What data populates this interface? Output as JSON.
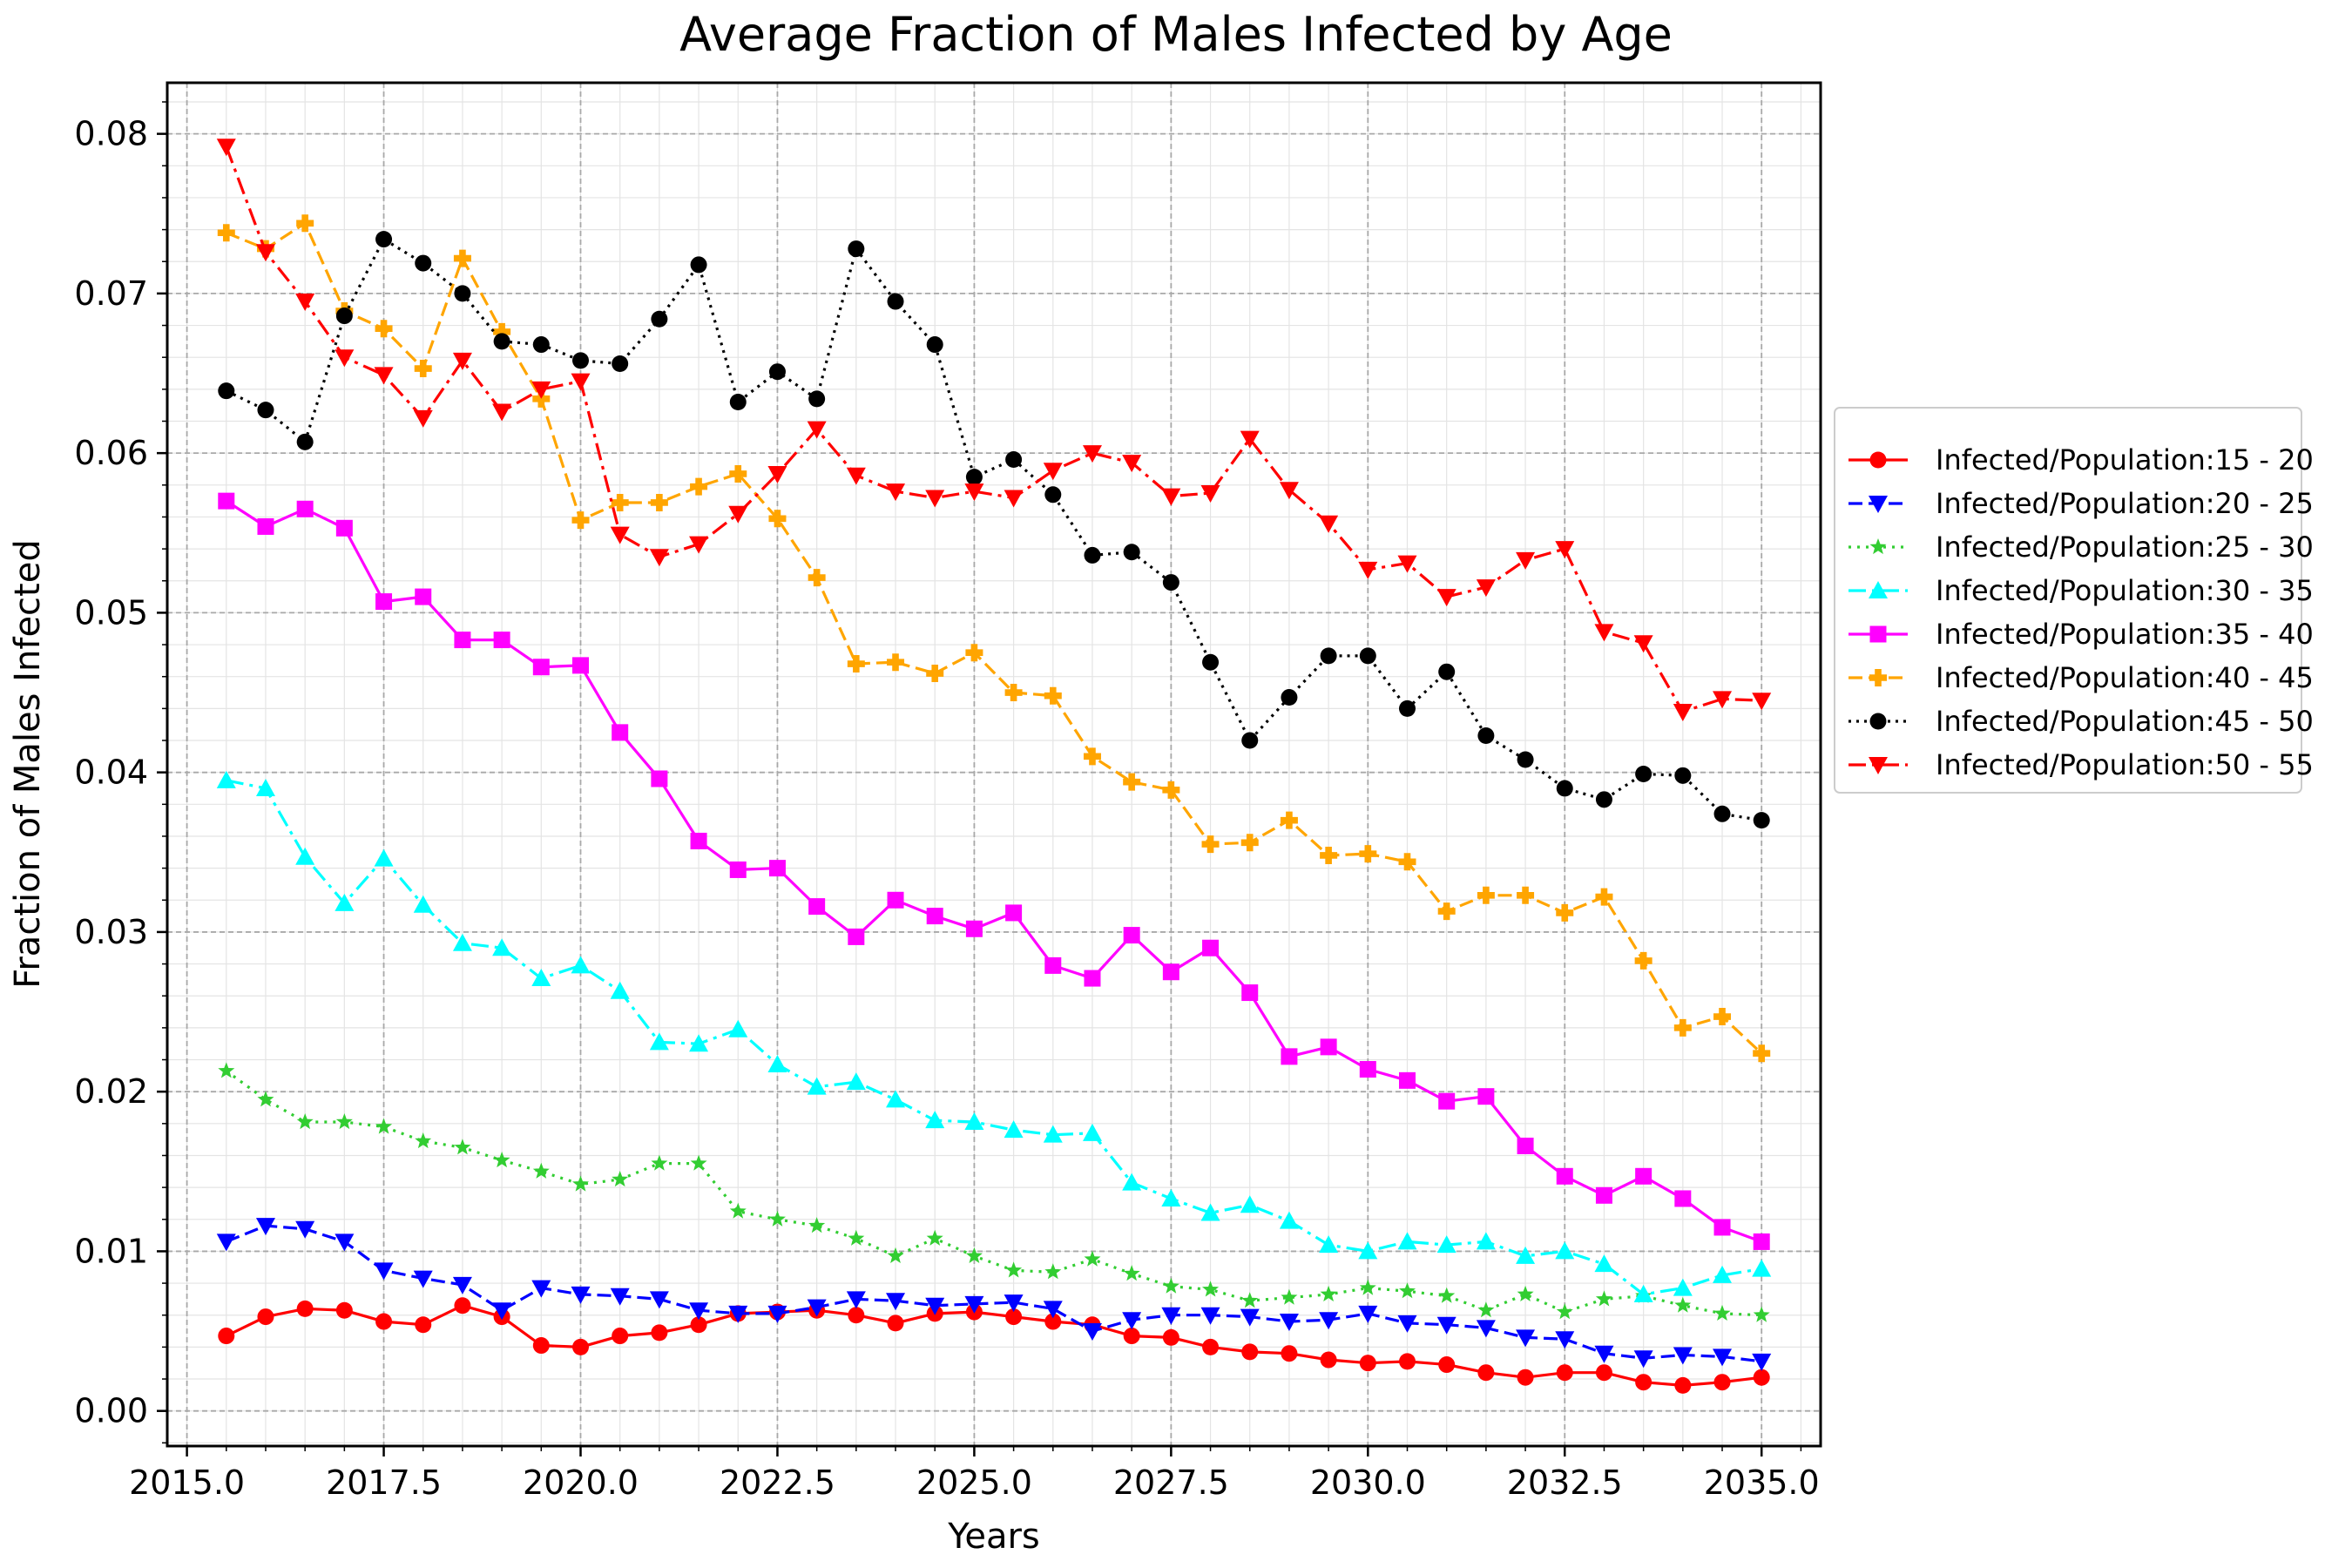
{
  "chart_data": {
    "type": "line",
    "title": "Average Fraction of Males Infected by Age",
    "xlabel": "Years",
    "ylabel": "Fraction of Males Infected",
    "xlim": [
      2014.75,
      2035.75
    ],
    "ylim": [
      -0.0022,
      0.0832
    ],
    "x_ticks": [
      2015.0,
      2017.5,
      2020.0,
      2022.5,
      2025.0,
      2027.5,
      2030.0,
      2032.5,
      2035.0
    ],
    "x_tick_labels": [
      "2015.0",
      "2017.5",
      "2020.0",
      "2022.5",
      "2025.0",
      "2027.5",
      "2030.0",
      "2032.5",
      "2035.0"
    ],
    "y_ticks": [
      0.0,
      0.01,
      0.02,
      0.03,
      0.04,
      0.05,
      0.06,
      0.07,
      0.08
    ],
    "y_tick_labels": [
      "0.00",
      "0.01",
      "0.02",
      "0.03",
      "0.04",
      "0.05",
      "0.06",
      "0.07",
      "0.08"
    ],
    "grid": true,
    "legend_position": "outside-right",
    "x": [
      2015.5,
      2016.0,
      2016.5,
      2017.0,
      2017.5,
      2018.0,
      2018.5,
      2019.0,
      2019.5,
      2020.0,
      2020.5,
      2021.0,
      2021.5,
      2022.0,
      2022.5,
      2023.0,
      2023.5,
      2024.0,
      2024.5,
      2025.0,
      2025.5,
      2026.0,
      2026.5,
      2027.0,
      2027.5,
      2028.0,
      2028.5,
      2029.0,
      2029.5,
      2030.0,
      2030.5,
      2031.0,
      2031.5,
      2032.0,
      2032.5,
      2033.0,
      2033.5,
      2034.0,
      2034.5,
      2035.0
    ],
    "series": [
      {
        "name": "Infected/Population:15 - 20",
        "color": "#ff0000",
        "marker": "circle",
        "dash": "solid",
        "values": [
          0.0047,
          0.0059,
          0.0064,
          0.0063,
          0.0056,
          0.0054,
          0.0066,
          0.0059,
          0.0041,
          0.004,
          0.0047,
          0.0049,
          0.0054,
          0.0061,
          0.0062,
          0.0063,
          0.006,
          0.0055,
          0.0061,
          0.0062,
          0.0059,
          0.0056,
          0.0054,
          0.0047,
          0.0046,
          0.004,
          0.0037,
          0.0036,
          0.0032,
          0.003,
          0.0031,
          0.0029,
          0.0024,
          0.0021,
          0.0024,
          0.0024,
          0.0018,
          0.0016,
          0.0018,
          0.0021
        ]
      },
      {
        "name": "Infected/Population:20 - 25",
        "color": "#0000ff",
        "marker": "triangle-down",
        "dash": "dashed",
        "values": [
          0.0106,
          0.0116,
          0.0114,
          0.0106,
          0.0088,
          0.0083,
          0.0079,
          0.0063,
          0.0077,
          0.0073,
          0.0072,
          0.007,
          0.0063,
          0.0061,
          0.0061,
          0.0065,
          0.007,
          0.0069,
          0.0066,
          0.0067,
          0.0068,
          0.0064,
          0.005,
          0.0057,
          0.006,
          0.006,
          0.0059,
          0.0056,
          0.0057,
          0.0061,
          0.0055,
          0.0054,
          0.0052,
          0.0046,
          0.0045,
          0.0036,
          0.0033,
          0.0035,
          0.0034,
          0.0031
        ]
      },
      {
        "name": "Infected/Population:25 - 30",
        "color": "#32cd32",
        "marker": "star",
        "dash": "dotted",
        "values": [
          0.0213,
          0.0195,
          0.0181,
          0.0181,
          0.0178,
          0.0169,
          0.0165,
          0.0157,
          0.015,
          0.0142,
          0.0145,
          0.0155,
          0.0155,
          0.0125,
          0.012,
          0.0116,
          0.0108,
          0.0097,
          0.0108,
          0.0097,
          0.0088,
          0.0087,
          0.0095,
          0.0086,
          0.0078,
          0.0076,
          0.0069,
          0.0071,
          0.0073,
          0.0077,
          0.0075,
          0.0072,
          0.0063,
          0.0073,
          0.0062,
          0.007,
          0.0072,
          0.0066,
          0.0061,
          0.006
        ]
      },
      {
        "name": "Infected/Population:30 - 35",
        "color": "#00ffff",
        "marker": "triangle-up",
        "dash": "dashdot",
        "values": [
          0.0395,
          0.039,
          0.0347,
          0.0318,
          0.0346,
          0.0317,
          0.0293,
          0.029,
          0.0271,
          0.0279,
          0.0263,
          0.0231,
          0.023,
          0.0239,
          0.0217,
          0.0203,
          0.0206,
          0.0195,
          0.0182,
          0.0181,
          0.0176,
          0.0173,
          0.0174,
          0.0143,
          0.0133,
          0.0124,
          0.0129,
          0.0119,
          0.0104,
          0.01,
          0.0106,
          0.0104,
          0.0106,
          0.0097,
          0.01,
          0.0092,
          0.0073,
          0.0077,
          0.0085,
          0.0089
        ]
      },
      {
        "name": "Infected/Population:35 - 40",
        "color": "#ff00ff",
        "marker": "square",
        "dash": "solid",
        "values": [
          0.057,
          0.0554,
          0.0565,
          0.0553,
          0.0507,
          0.051,
          0.0483,
          0.0483,
          0.0466,
          0.0467,
          0.0425,
          0.0396,
          0.0357,
          0.0339,
          0.034,
          0.0316,
          0.0297,
          0.032,
          0.031,
          0.0302,
          0.0312,
          0.0279,
          0.0271,
          0.0298,
          0.0275,
          0.029,
          0.0262,
          0.0222,
          0.0228,
          0.0214,
          0.0207,
          0.0194,
          0.0197,
          0.0166,
          0.0147,
          0.0135,
          0.0147,
          0.0133,
          0.0115,
          0.0106
        ]
      },
      {
        "name": "Infected/Population:40 - 45",
        "color": "#ffa500",
        "marker": "plus",
        "dash": "dashed",
        "values": [
          0.0738,
          0.0728,
          0.0744,
          0.0689,
          0.0678,
          0.0653,
          0.0722,
          0.0676,
          0.0634,
          0.0558,
          0.0569,
          0.0569,
          0.0579,
          0.0587,
          0.0559,
          0.0522,
          0.0468,
          0.0469,
          0.0462,
          0.0475,
          0.045,
          0.0448,
          0.041,
          0.0394,
          0.0389,
          0.0355,
          0.0356,
          0.037,
          0.0348,
          0.0349,
          0.0344,
          0.0313,
          0.0323,
          0.0323,
          0.0312,
          0.0322,
          0.0282,
          0.024,
          0.0247,
          0.0224
        ]
      },
      {
        "name": "Infected/Population:45 - 50",
        "color": "#000000",
        "marker": "circle",
        "dash": "densely-dotted",
        "values": [
          0.0639,
          0.0627,
          0.0607,
          0.0686,
          0.0734,
          0.0719,
          0.07,
          0.067,
          0.0668,
          0.0658,
          0.0656,
          0.0684,
          0.0718,
          0.0632,
          0.0651,
          0.0634,
          0.0728,
          0.0695,
          0.0668,
          0.0585,
          0.0596,
          0.0574,
          0.0536,
          0.0538,
          0.0519,
          0.0469,
          0.042,
          0.0447,
          0.0473,
          0.0473,
          0.044,
          0.0463,
          0.0423,
          0.0408,
          0.039,
          0.0383,
          0.0399,
          0.0398,
          0.0374,
          0.037
        ]
      },
      {
        "name": "Infected/Population:50 - 55",
        "color": "#ff0000",
        "marker": "triangle-down",
        "dash": "dashdot",
        "values": [
          0.0792,
          0.0726,
          0.0695,
          0.066,
          0.0649,
          0.0622,
          0.0658,
          0.0626,
          0.064,
          0.0645,
          0.0549,
          0.0535,
          0.0543,
          0.0562,
          0.0587,
          0.0615,
          0.0586,
          0.0576,
          0.0572,
          0.0576,
          0.0572,
          0.0589,
          0.06,
          0.0594,
          0.0573,
          0.0575,
          0.0609,
          0.0577,
          0.0556,
          0.0527,
          0.0531,
          0.051,
          0.0516,
          0.0533,
          0.054,
          0.0488,
          0.0481,
          0.0438,
          0.0446,
          0.0445
        ]
      }
    ]
  }
}
